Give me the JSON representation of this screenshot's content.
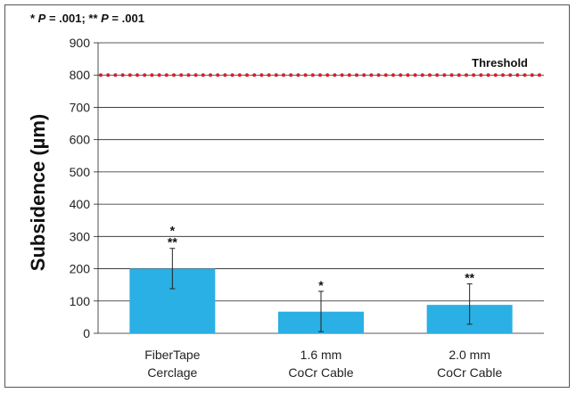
{
  "chart_data": {
    "type": "bar",
    "title": "",
    "ylabel": "Subsidence (µm)",
    "xlabel": "",
    "ylim": [
      0,
      900
    ],
    "yticks": [
      0,
      100,
      200,
      300,
      400,
      500,
      600,
      700,
      800,
      900
    ],
    "grid": true,
    "categories": [
      [
        "FiberTape",
        "Cerclage"
      ],
      [
        "1.6 mm",
        "CoCr Cable"
      ],
      [
        "2.0 mm",
        "CoCr Cable"
      ]
    ],
    "values": [
      200,
      67,
      88
    ],
    "error_low": [
      138,
      5,
      28
    ],
    "error_high": [
      263,
      130,
      153
    ],
    "significance_marks": [
      [
        "*",
        "**"
      ],
      [
        "*"
      ],
      [
        "**"
      ]
    ],
    "threshold": {
      "value": 800,
      "label": "Threshold",
      "color": "#d81f2a"
    },
    "annotation": {
      "star1": "* ",
      "p1": "P",
      "eq1": " = .001; ",
      "star2": "** ",
      "p2": "P",
      "eq2": " = .001"
    },
    "bar_color": "#2ab0e4"
  }
}
